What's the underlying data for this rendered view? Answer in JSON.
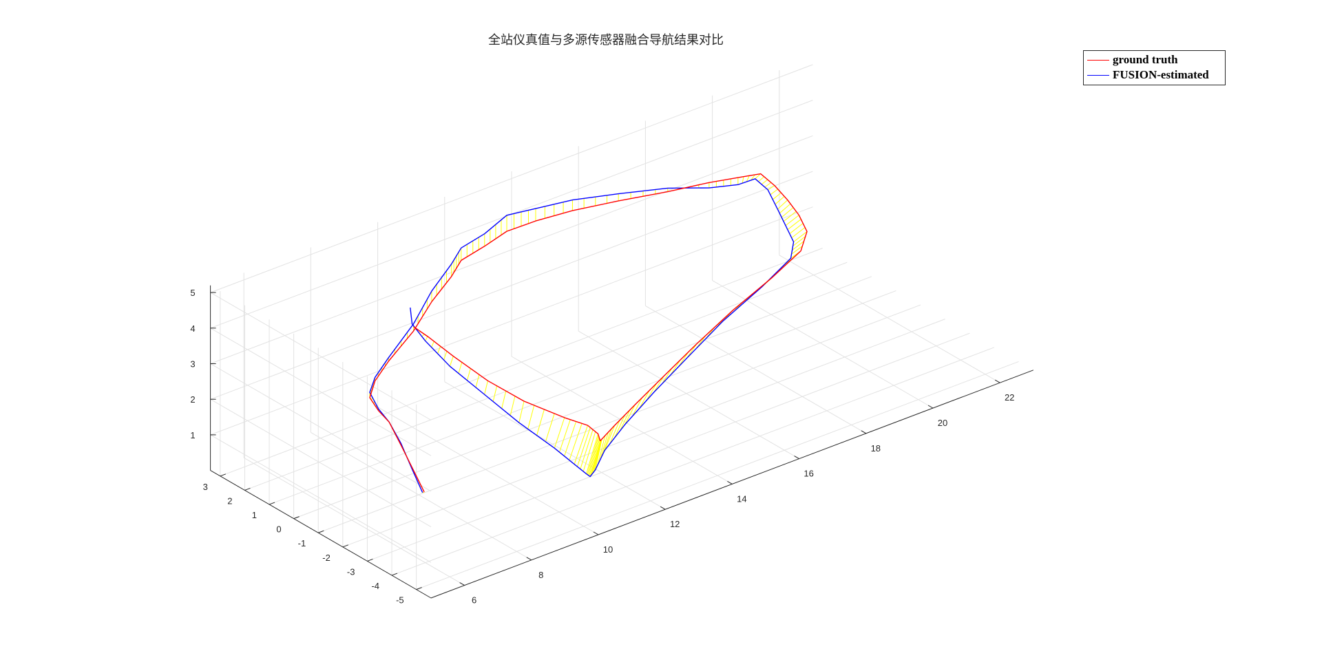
{
  "chart_data": {
    "type": "line",
    "subtype": "3d-trajectory",
    "title": "全站仪真值与多源传感器融合导航结果对比",
    "xlabel": "",
    "ylabel": "",
    "zlabel": "",
    "xlim": [
      5,
      23
    ],
    "ylim": [
      -5.6,
      3.4
    ],
    "zlim": [
      0,
      5.2
    ],
    "x_ticks": [
      6,
      8,
      10,
      12,
      14,
      16,
      18,
      20,
      22
    ],
    "y_ticks": [
      -5,
      -4,
      -3,
      -2,
      -1,
      0,
      1,
      2,
      3
    ],
    "z_ticks": [
      1,
      2,
      3,
      4,
      5
    ],
    "grid": true,
    "legend_position": "top-right",
    "series": [
      {
        "name": "ground truth",
        "color": "#ff0000",
        "points": [
          [
            7.8,
            -1.5,
            0.35
          ],
          [
            7.82,
            -1.0,
            0.8
          ],
          [
            7.84,
            -0.5,
            1.25
          ],
          [
            7.85,
            0.0,
            1.7
          ],
          [
            7.9,
            0.5,
            1.8
          ],
          [
            8.15,
            1.2,
            1.8
          ],
          [
            8.6,
            1.6,
            1.95
          ],
          [
            9.3,
            2.0,
            2.1
          ],
          [
            10.3,
            2.35,
            2.45
          ],
          [
            11.1,
            2.7,
            2.85
          ],
          [
            11.8,
            2.85,
            3.25
          ],
          [
            12.2,
            3.0,
            3.5
          ],
          [
            12.9,
            3.0,
            3.65
          ],
          [
            13.6,
            3.05,
            3.8
          ],
          [
            14.5,
            3.1,
            3.75
          ],
          [
            15.6,
            3.1,
            3.65
          ],
          [
            16.9,
            3.0,
            3.5
          ],
          [
            18.3,
            2.9,
            3.3
          ],
          [
            19.5,
            2.85,
            3.15
          ],
          [
            20.4,
            2.9,
            2.95
          ],
          [
            21.15,
            3.0,
            2.75
          ],
          [
            21.2,
            2.5,
            2.6
          ],
          [
            21.15,
            1.9,
            2.45
          ],
          [
            21.05,
            1.3,
            2.3
          ],
          [
            20.85,
            0.7,
            2.15
          ],
          [
            20.3,
            0.2,
            2.0
          ],
          [
            19.0,
            -0.4,
            1.95
          ],
          [
            17.4,
            -1.0,
            1.85
          ],
          [
            15.8,
            -1.7,
            1.75
          ],
          [
            14.3,
            -2.4,
            1.65
          ],
          [
            13.0,
            -3.0,
            1.55
          ],
          [
            12.1,
            -3.4,
            1.45
          ],
          [
            11.5,
            -3.7,
            1.4
          ],
          [
            11.3,
            -3.9,
            1.5
          ],
          [
            11.2,
            -3.95,
            1.75
          ],
          [
            11.0,
            -3.8,
            2.0
          ],
          [
            10.6,
            -3.4,
            2.2
          ],
          [
            10.05,
            -2.5,
            2.5
          ],
          [
            9.7,
            -1.5,
            2.8
          ],
          [
            9.4,
            -0.5,
            3.2
          ],
          [
            9.22,
            0.3,
            3.5
          ],
          [
            9.1,
            0.7,
            3.65
          ]
        ]
      },
      {
        "name": "FUSION-estimated",
        "color": "#0000ff",
        "points": [
          [
            7.75,
            -1.5,
            0.35
          ],
          [
            7.8,
            -1.0,
            0.8
          ],
          [
            7.84,
            -0.5,
            1.3
          ],
          [
            7.85,
            0.0,
            1.7
          ],
          [
            7.9,
            0.5,
            1.85
          ],
          [
            8.15,
            1.2,
            1.95
          ],
          [
            8.6,
            1.6,
            2.05
          ],
          [
            9.3,
            2.0,
            2.2
          ],
          [
            10.3,
            2.35,
            2.65
          ],
          [
            11.1,
            2.7,
            3.15
          ],
          [
            11.8,
            2.85,
            3.6
          ],
          [
            12.2,
            3.0,
            3.85
          ],
          [
            12.9,
            3.0,
            4.0
          ],
          [
            13.6,
            3.05,
            4.25
          ],
          [
            14.5,
            3.1,
            4.1
          ],
          [
            15.6,
            3.1,
            3.95
          ],
          [
            16.9,
            3.0,
            3.7
          ],
          [
            18.3,
            2.9,
            3.4
          ],
          [
            19.5,
            2.85,
            3.0
          ],
          [
            20.4,
            2.9,
            2.75
          ],
          [
            20.95,
            2.95,
            2.7
          ],
          [
            21.0,
            2.5,
            2.55
          ],
          [
            20.85,
            1.9,
            2.3
          ],
          [
            20.65,
            1.3,
            2.15
          ],
          [
            20.45,
            0.7,
            2.0
          ],
          [
            20.0,
            0.2,
            1.9
          ],
          [
            18.7,
            -0.4,
            1.8
          ],
          [
            17.1,
            -1.0,
            1.65
          ],
          [
            15.5,
            -1.7,
            1.45
          ],
          [
            14.0,
            -2.4,
            1.3
          ],
          [
            12.7,
            -3.0,
            1.1
          ],
          [
            11.8,
            -3.4,
            0.85
          ],
          [
            11.3,
            -3.7,
            0.6
          ],
          [
            11.0,
            -3.9,
            0.6
          ],
          [
            10.85,
            -3.95,
            0.75
          ],
          [
            10.6,
            -3.8,
            1.05
          ],
          [
            10.3,
            -3.4,
            1.45
          ],
          [
            9.9,
            -2.5,
            1.95
          ],
          [
            9.6,
            -1.5,
            2.45
          ],
          [
            9.3,
            -0.5,
            2.95
          ],
          [
            9.15,
            0.3,
            3.4
          ],
          [
            9.05,
            0.7,
            3.75
          ],
          [
            9.03,
            0.75,
            4.2
          ]
        ]
      }
    ],
    "connector_color": "#ffff00"
  }
}
